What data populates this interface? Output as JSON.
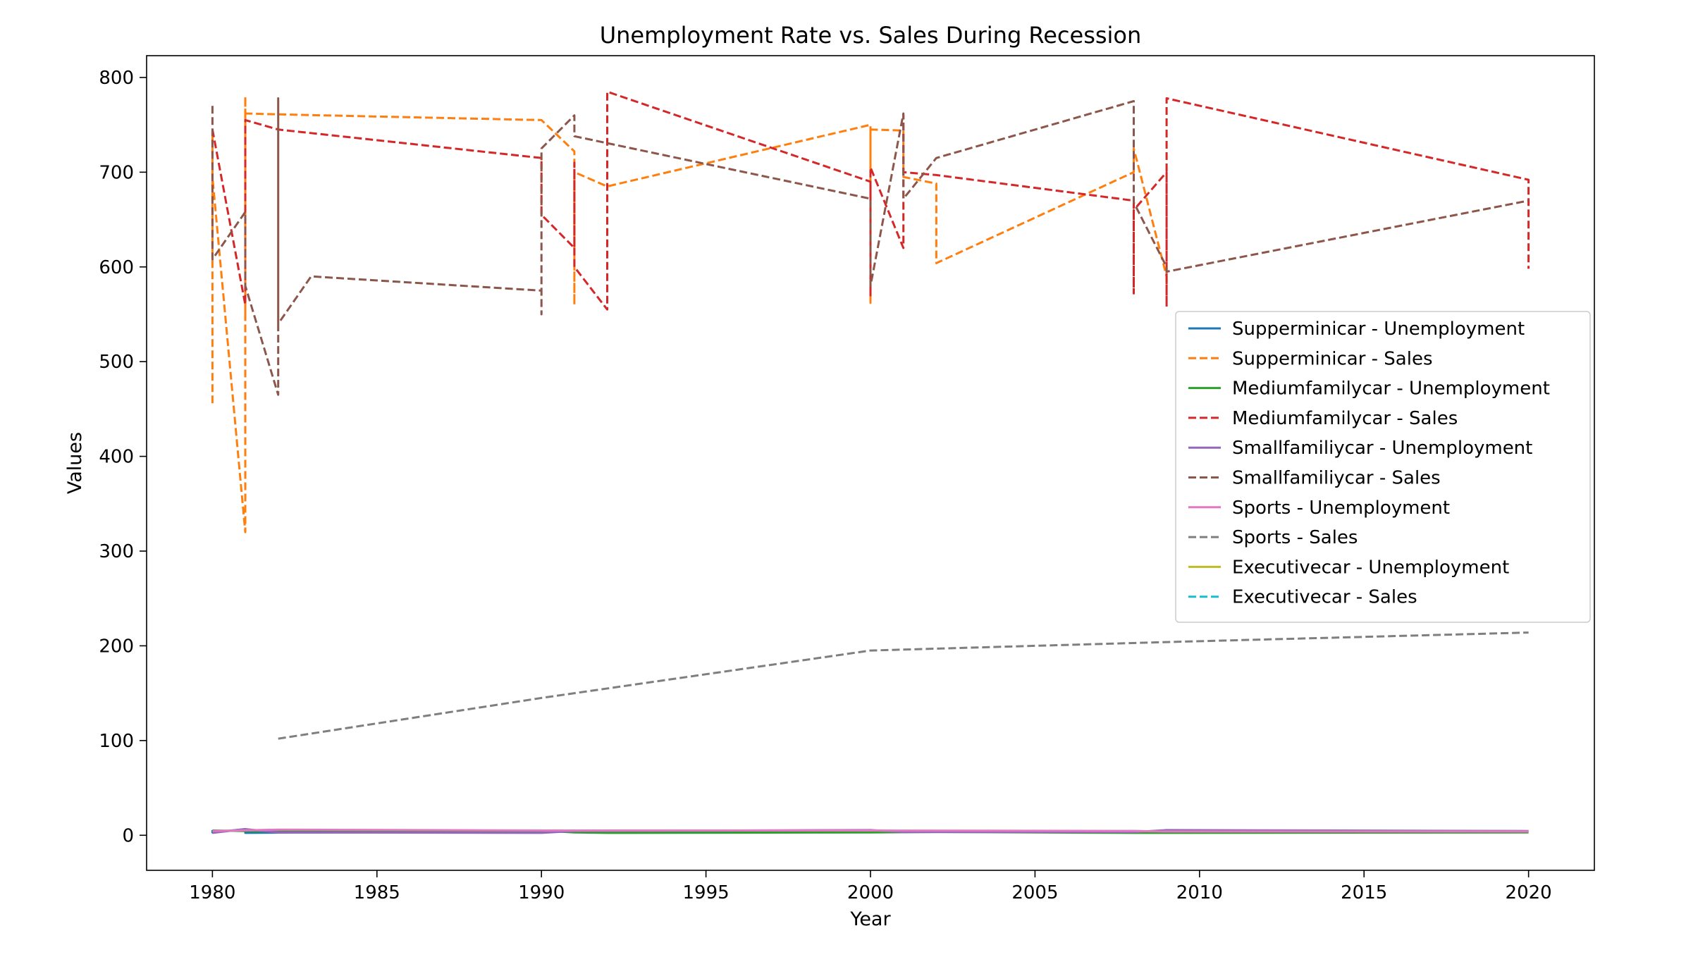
{
  "chart_data": {
    "type": "line",
    "title": "Unemployment Rate vs. Sales During Recession",
    "xlabel": "Year",
    "ylabel": "Values",
    "xlim": [
      1978,
      2022
    ],
    "ylim": [
      -37,
      823
    ],
    "xticks": [
      1980,
      1985,
      1990,
      1995,
      2000,
      2005,
      2010,
      2015,
      2020
    ],
    "yticks": [
      0,
      100,
      200,
      300,
      400,
      500,
      600,
      700,
      800
    ],
    "grid": false,
    "legend_position": "center-right",
    "series": [
      {
        "name": "Supperminicar - Unemployment",
        "color": "#1f77b4",
        "dash": "solid",
        "x": [
          1980,
          1980,
          1981,
          1981,
          1982,
          1990,
          1991,
          2000,
          2001,
          2008,
          2009,
          2020
        ],
        "y": [
          5.5,
          3.0,
          6.5,
          2.5,
          2.8,
          3.5,
          4.8,
          4.0,
          4.2,
          4.5,
          4.1,
          4.2
        ]
      },
      {
        "name": "Supperminicar - Sales",
        "color": "#ff7f0e",
        "dash": "dashed",
        "x": [
          1980,
          1980,
          1980,
          1981,
          1981,
          1981,
          1981,
          1982,
          1990,
          1991,
          1991,
          1991,
          1992,
          2000,
          2000,
          2000,
          2001,
          2001,
          2002,
          2002,
          2008,
          2008,
          2009,
          2009
        ],
        "y": [
          456,
          740,
          695,
          320,
          780,
          550,
          762,
          761,
          755,
          722,
          560,
          700,
          685,
          750,
          562,
          745,
          744,
          695,
          688,
          604,
          700,
          725,
          590,
          580
        ]
      },
      {
        "name": "Mediumfamilycar - Unemployment",
        "color": "#2ca02c",
        "dash": "solid",
        "x": [
          1980,
          1981,
          1982,
          1990,
          1991,
          1992,
          2000,
          2002,
          2008,
          2009,
          2020
        ],
        "y": [
          5.0,
          4.5,
          4.0,
          4.8,
          3.0,
          2.5,
          3.0,
          3.5,
          2.5,
          2.5,
          3.0
        ]
      },
      {
        "name": "Mediumfamilycar - Sales",
        "color": "#d62728",
        "dash": "dashed",
        "x": [
          1980,
          1981,
          1981,
          1982,
          1990,
          1990,
          1991,
          1991,
          1991,
          1992,
          1992,
          2000,
          2000,
          2000,
          2001,
          2001,
          2001,
          2002,
          2008,
          2008,
          2008,
          2009,
          2009,
          2009,
          2020,
          2020
        ],
        "y": [
          745,
          560,
          755,
          745,
          715,
          655,
          620,
          710,
          600,
          555,
          785,
          690,
          570,
          705,
          620,
          760,
          700,
          697,
          670,
          572,
          660,
          700,
          558,
          778,
          692,
          598
        ]
      },
      {
        "name": "Smallfamiliycar - Unemployment",
        "color": "#9467bd",
        "dash": "solid",
        "x": [
          1980,
          1981,
          1982,
          1990,
          1991,
          2000,
          2001,
          2008,
          2009,
          2020
        ],
        "y": [
          2.5,
          6.5,
          3.0,
          2.5,
          4.5,
          5.5,
          3.5,
          3.5,
          5.5,
          4.5
        ]
      },
      {
        "name": "Smallfamiliycar - Sales",
        "color": "#8c564b",
        "dash": "dashed",
        "x": [
          1980,
          1980,
          1981,
          1981,
          1982,
          1982,
          1982,
          1983,
          1990,
          1990,
          1990,
          1991,
          1991,
          2000,
          2000,
          2001,
          2001,
          2002,
          2008,
          2008,
          2009,
          2009,
          2020
        ],
        "y": [
          770,
          608,
          658,
          580,
          465,
          778,
          540,
          590,
          575,
          550,
          725,
          760,
          738,
          672,
          580,
          762,
          672,
          715,
          775,
          668,
          600,
          595,
          670
        ]
      },
      {
        "name": "Sports - Unemployment",
        "color": "#e377c2",
        "dash": "solid",
        "x": [
          1980,
          1982,
          1990,
          2000,
          2008,
          2009,
          2020
        ],
        "y": [
          4.5,
          6.0,
          5.0,
          5.0,
          4.5,
          4.0,
          4.0
        ]
      },
      {
        "name": "Sports - Sales",
        "color": "#7f7f7f",
        "dash": "dashed",
        "x": [
          1982,
          1990,
          2000,
          2009,
          2020
        ],
        "y": [
          102,
          145,
          195,
          204,
          214
        ]
      },
      {
        "name": "Executivecar - Unemployment",
        "color": "#bcbd22",
        "dash": "solid",
        "x": [],
        "y": []
      },
      {
        "name": "Executivecar - Sales",
        "color": "#17becf",
        "dash": "dashed",
        "x": [],
        "y": []
      }
    ]
  }
}
